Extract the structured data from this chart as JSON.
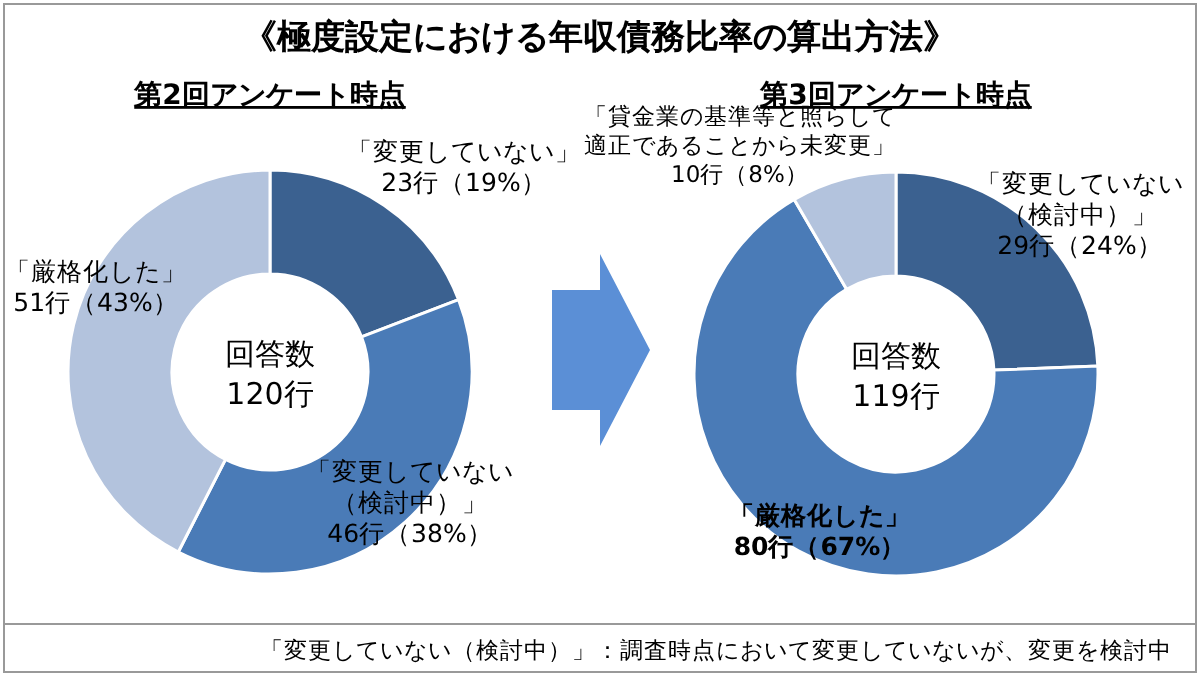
{
  "chart_data": [
    {
      "type": "donut",
      "title": "第2回アンケート時点",
      "categories": [
        "「変更していない」",
        "「変更していない（検討中）」",
        "「厳格化した」"
      ],
      "values": [
        23,
        46,
        51
      ],
      "value_labels": [
        "23行（19%）",
        "46行（38%）",
        "51行（43%）"
      ],
      "colors": [
        "#3b6190",
        "#4a7bb7",
        "#b3c3dd"
      ],
      "annotations": [
        "《極度設定における年収債務比率の算出方法》",
        "回答数\n120行"
      ]
    },
    {
      "type": "donut",
      "title": "第3回アンケート時点",
      "categories": [
        "「変更していない（検討中）」",
        "「厳格化した」",
        "「貸金業の基準等と照らして適正であることから未変更」"
      ],
      "values": [
        29,
        80,
        10
      ],
      "value_labels": [
        "29行（24%）",
        "80行（67%）",
        "10行（8%）"
      ],
      "colors": [
        "#3b6190",
        "#4a7bb7",
        "#b3c3dd"
      ],
      "annotations": [
        "回答数\n119行",
        "「変更していない（検討中）」：調査時点において変更していないが、変更を検討中"
      ]
    }
  ]
}
